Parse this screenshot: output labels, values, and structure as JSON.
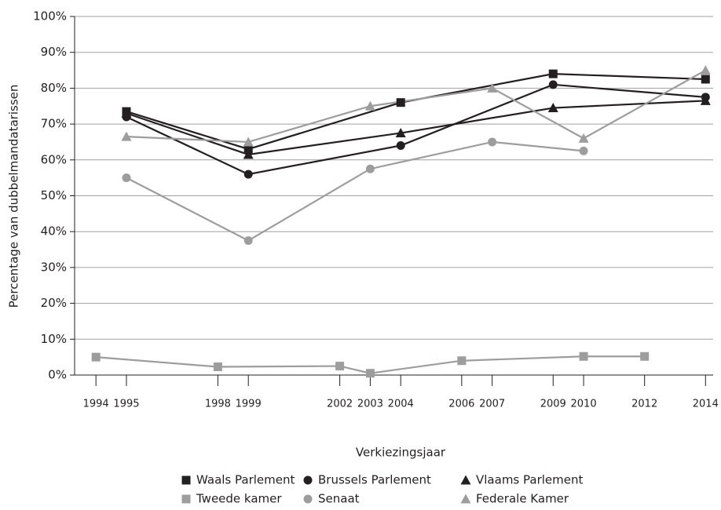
{
  "chart_data": {
    "type": "line",
    "x_label": "Verkiezingsjaar",
    "y_label": "Percentage van dubbelmandatarissen",
    "xlim": [
      1993.3,
      2014.25
    ],
    "xticks": [
      1994,
      1995,
      1998,
      1999,
      2002,
      2003,
      2004,
      2006,
      2007,
      2009,
      2010,
      2012,
      2014
    ],
    "ylim": [
      0,
      100
    ],
    "yticks": [
      {
        "value": 0,
        "label": "0%"
      },
      {
        "value": 10,
        "label": "10%"
      },
      {
        "value": 20,
        "label": "20%"
      },
      {
        "value": 30,
        "label": "30%"
      },
      {
        "value": 40,
        "label": "40%"
      },
      {
        "value": 50,
        "label": "50%"
      },
      {
        "value": 60,
        "label": "60%"
      },
      {
        "value": 70,
        "label": "70%"
      },
      {
        "value": 80,
        "label": "80%"
      },
      {
        "value": 90,
        "label": "90%"
      },
      {
        "value": 100,
        "label": "100%"
      }
    ],
    "grid": true,
    "legend": "bottom",
    "series": [
      {
        "name": "Waals Parlement",
        "color": "#231f20",
        "marker": "square",
        "x": [
          1995,
          1999,
          2004,
          2009,
          2014
        ],
        "values": [
          73.5,
          63,
          76,
          84,
          82.5
        ]
      },
      {
        "name": "Brussels Parlement",
        "color": "#231f20",
        "marker": "circle",
        "x": [
          1995,
          1999,
          2004,
          2009,
          2014
        ],
        "values": [
          72,
          56,
          64,
          81,
          77.5
        ]
      },
      {
        "name": "Vlaams Parlement",
        "color": "#231f20",
        "marker": "triangle",
        "x": [
          1995,
          1999,
          2004,
          2009,
          2014
        ],
        "values": [
          73,
          61.5,
          67.5,
          74.5,
          76.5
        ]
      },
      {
        "name": "Tweede kamer",
        "color": "#9d9d9d",
        "marker": "square",
        "x": [
          1994,
          1998,
          2002,
          2003,
          2006,
          2010,
          2012
        ],
        "values": [
          5,
          2.3,
          2.5,
          0.5,
          4,
          5.2,
          5.2
        ]
      },
      {
        "name": "Senaat",
        "color": "#9d9d9d",
        "marker": "circle",
        "x": [
          1995,
          1999,
          2003,
          2007,
          2010
        ],
        "values": [
          55,
          37.5,
          57.5,
          65,
          62.5
        ]
      },
      {
        "name": "Federale Kamer",
        "color": "#9d9d9d",
        "marker": "triangle",
        "x": [
          1995,
          1999,
          2003,
          2007,
          2010,
          2014
        ],
        "values": [
          66.5,
          65,
          75,
          80,
          66,
          85
        ]
      }
    ]
  }
}
